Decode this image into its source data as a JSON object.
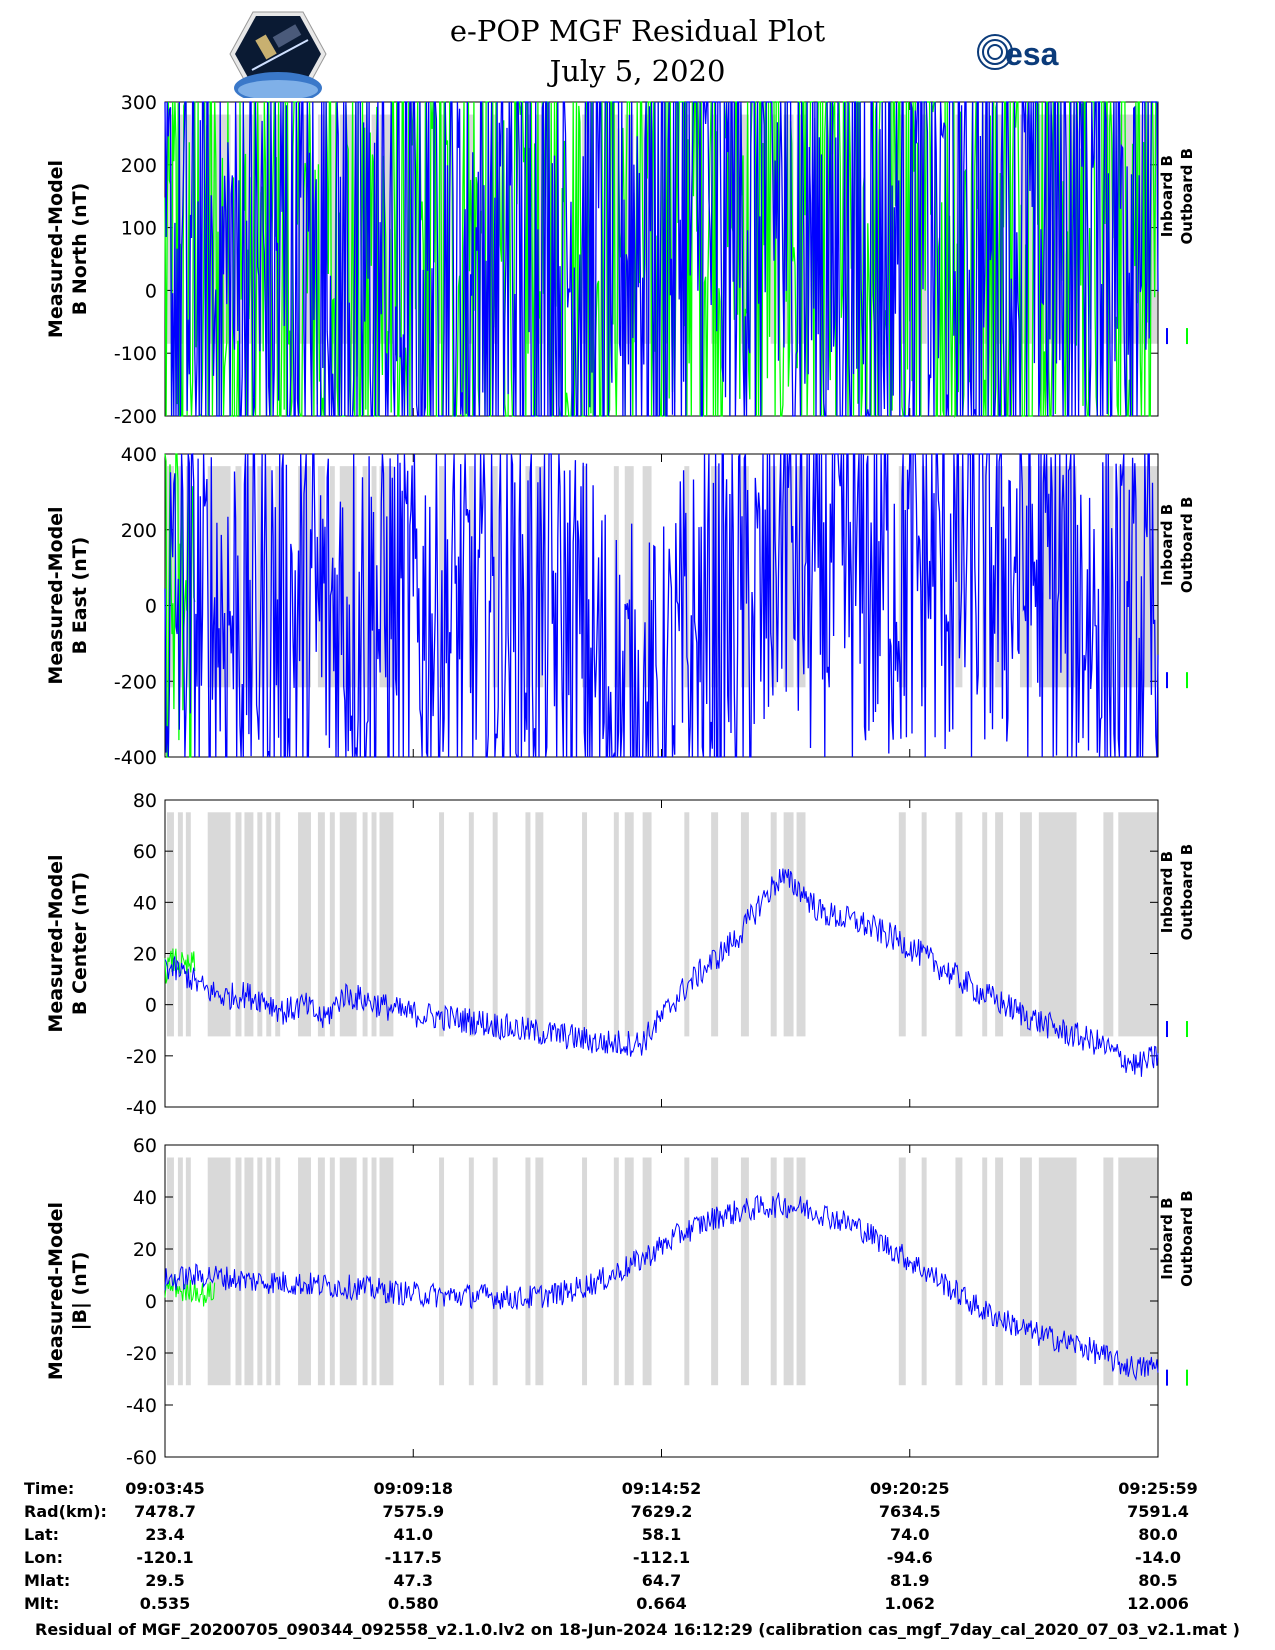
{
  "header": {
    "title_line1": "e-POP MGF Residual Plot",
    "title_line2": "July 5, 2020",
    "logo_left": "cassiope-mission-logo",
    "logo_right_text": "esa"
  },
  "colors": {
    "inboard": "#0000ff",
    "outboard": "#00ff00",
    "shade": "#d9d9d9"
  },
  "legend": {
    "inboard": "Inboard B",
    "outboard": "Outboard B"
  },
  "chart_data": [
    {
      "type": "line",
      "ylabel": [
        "Measured-Model",
        "B North (nT)"
      ],
      "ylim": [
        -200,
        300
      ],
      "yticks": [
        -200,
        -100,
        0,
        100,
        200,
        300
      ],
      "series": [
        {
          "name": "Inboard B",
          "x": [
            0,
            4,
            8,
            12,
            16,
            20,
            24,
            28,
            32,
            36,
            38,
            40,
            44,
            48,
            50,
            52,
            54,
            56,
            58,
            60,
            62,
            64,
            66,
            68,
            70,
            72,
            74,
            76,
            78,
            80,
            84,
            88,
            92,
            96,
            100
          ],
          "values": [
            -10,
            -2,
            2,
            5,
            0,
            10,
            -10,
            18,
            30,
            42,
            50,
            62,
            88,
            108,
            118,
            128,
            135,
            148,
            153,
            160,
            132,
            125,
            80,
            63,
            72,
            78,
            82,
            84,
            85,
            88,
            85,
            102,
            128,
            165,
            250
          ]
        },
        {
          "name": "Outboard B",
          "x": [
            0,
            2,
            4,
            8,
            12,
            16,
            20,
            24,
            28,
            32,
            36,
            40,
            44,
            48,
            50,
            52,
            54,
            56,
            58,
            60,
            62,
            64,
            66,
            68,
            70,
            72,
            76,
            80,
            84,
            88,
            92,
            96,
            100
          ],
          "values": [
            -15,
            -8,
            -4,
            8,
            10,
            6,
            16,
            -4,
            24,
            36,
            48,
            68,
            94,
            114,
            124,
            134,
            140,
            153,
            158,
            165,
            137,
            130,
            85,
            68,
            78,
            85,
            91,
            93,
            90,
            108,
            133,
            170,
            258
          ]
        }
      ]
    },
    {
      "type": "line",
      "ylabel": [
        "Measured-Model",
        "B East (nT)"
      ],
      "ylim": [
        -400,
        400
      ],
      "yticks": [
        -400,
        -200,
        0,
        200,
        400
      ],
      "series": [
        {
          "name": "Inboard B",
          "x": [
            0,
            4,
            8,
            12,
            16,
            20,
            24,
            28,
            32,
            36,
            40,
            44,
            46,
            48,
            50,
            51,
            52,
            53,
            54,
            56,
            58,
            60,
            61,
            62,
            63,
            64,
            66,
            68,
            72,
            76,
            80,
            84,
            86,
            88,
            90,
            92,
            94,
            96,
            98,
            100
          ],
          "values": [
            -25,
            -26,
            -30,
            -32,
            -28,
            -25,
            -28,
            -28,
            -30,
            -35,
            -50,
            -200,
            -300,
            -360,
            -350,
            -250,
            -170,
            -150,
            -120,
            -60,
            -20,
            -30,
            100,
            270,
            240,
            110,
            100,
            95,
            105,
            110,
            112,
            118,
            120,
            90,
            60,
            20,
            -40,
            -100,
            -130,
            -60
          ]
        },
        {
          "name": "Outboard B",
          "x": [
            0,
            1,
            2,
            3
          ],
          "values": [
            -22,
            -24,
            -23,
            -24
          ]
        }
      ]
    },
    {
      "type": "line",
      "ylabel": [
        "Measured-Model",
        "B Center (nT)"
      ],
      "ylim": [
        -40,
        80
      ],
      "yticks": [
        -40,
        -20,
        0,
        20,
        40,
        60,
        80
      ],
      "series": [
        {
          "name": "Inboard B",
          "x": [
            0,
            2,
            4,
            6,
            8,
            10,
            12,
            14,
            16,
            18,
            20,
            24,
            28,
            32,
            36,
            40,
            44,
            48,
            50,
            52,
            54,
            56,
            58,
            60,
            62,
            64,
            66,
            70,
            74,
            78,
            82,
            86,
            90,
            94,
            96,
            98,
            100
          ],
          "values": [
            15,
            12,
            6,
            3,
            4,
            2,
            -3,
            0,
            -6,
            4,
            2,
            -3,
            -5,
            -7,
            -10,
            -12,
            -15,
            -15,
            -5,
            5,
            13,
            20,
            28,
            40,
            50,
            45,
            36,
            32,
            25,
            15,
            5,
            -3,
            -10,
            -15,
            -20,
            -24,
            -20
          ]
        },
        {
          "name": "Outboard B",
          "x": [
            0,
            1,
            2,
            3
          ],
          "values": [
            13,
            18,
            14,
            16
          ]
        }
      ]
    },
    {
      "type": "line",
      "ylabel": [
        "Measured-Model",
        "|B| (nT)"
      ],
      "ylim": [
        -60,
        60
      ],
      "yticks": [
        -60,
        -40,
        -20,
        0,
        20,
        40,
        60
      ],
      "series": [
        {
          "name": "Inboard B",
          "x": [
            0,
            4,
            8,
            12,
            16,
            20,
            24,
            28,
            32,
            36,
            40,
            44,
            48,
            52,
            56,
            60,
            62,
            64,
            66,
            70,
            74,
            78,
            82,
            86,
            88,
            90,
            92,
            94,
            96,
            98,
            100
          ],
          "values": [
            8,
            10,
            8,
            7,
            6,
            5,
            3,
            2,
            2,
            1,
            3,
            8,
            16,
            26,
            33,
            36,
            37,
            36,
            34,
            28,
            18,
            8,
            -3,
            -10,
            -13,
            -15,
            -17,
            -20,
            -24,
            -26,
            -25
          ]
        },
        {
          "name": "Outboard B",
          "x": [
            0,
            1,
            2,
            3,
            4,
            5
          ],
          "values": [
            4,
            6,
            3,
            5,
            2,
            4
          ]
        }
      ]
    }
  ],
  "xaxis": {
    "ticks": [
      0,
      25,
      50,
      75,
      100
    ],
    "rows": [
      {
        "label": "Time:",
        "values": [
          "09:03:45",
          "09:09:18",
          "09:14:52",
          "09:20:25",
          "09:25:59"
        ]
      },
      {
        "label": "Rad(km):",
        "values": [
          "7478.7",
          "7575.9",
          "7629.2",
          "7634.5",
          "7591.4"
        ]
      },
      {
        "label": "Lat:",
        "values": [
          "23.4",
          "41.0",
          "58.1",
          "74.0",
          "80.0"
        ]
      },
      {
        "label": "Lon:",
        "values": [
          "-120.1",
          "-117.5",
          "-112.1",
          "-94.6",
          "-14.0"
        ]
      },
      {
        "label": "Mlat:",
        "values": [
          "29.5",
          "47.3",
          "64.7",
          "81.9",
          "80.5"
        ]
      },
      {
        "label": "Mlt:",
        "values": [
          "0.535",
          "0.580",
          "0.664",
          "1.062",
          "12.006"
        ]
      }
    ]
  },
  "shaded_intervals": [
    [
      0.2,
      0.9
    ],
    [
      1.3,
      1.8
    ],
    [
      2.1,
      2.6
    ],
    [
      4.3,
      6.6
    ],
    [
      7.1,
      7.7
    ],
    [
      8.0,
      8.9
    ],
    [
      9.3,
      9.8
    ],
    [
      10.2,
      10.7
    ],
    [
      11.1,
      11.6
    ],
    [
      13.4,
      14.7
    ],
    [
      15.4,
      16.1
    ],
    [
      16.6,
      17.1
    ],
    [
      17.6,
      19.3
    ],
    [
      19.9,
      20.4
    ],
    [
      20.8,
      21.3
    ],
    [
      21.6,
      23.0
    ],
    [
      27.6,
      28.1
    ],
    [
      30.6,
      31.1
    ],
    [
      33.0,
      33.5
    ],
    [
      36.3,
      36.8
    ],
    [
      37.3,
      38.1
    ],
    [
      42.0,
      42.5
    ],
    [
      45.2,
      45.7
    ],
    [
      46.3,
      47.2
    ],
    [
      48.1,
      49.0
    ],
    [
      52.3,
      52.8
    ],
    [
      55.0,
      55.7
    ],
    [
      58.0,
      58.8
    ],
    [
      61.0,
      61.6
    ],
    [
      62.3,
      63.3
    ],
    [
      63.6,
      64.5
    ],
    [
      73.9,
      74.6
    ],
    [
      76.2,
      76.7
    ],
    [
      79.6,
      80.3
    ],
    [
      82.3,
      82.8
    ],
    [
      83.6,
      84.4
    ],
    [
      86.1,
      87.3
    ],
    [
      88.0,
      91.8
    ],
    [
      94.5,
      95.5
    ],
    [
      96.0,
      100
    ]
  ]
}
